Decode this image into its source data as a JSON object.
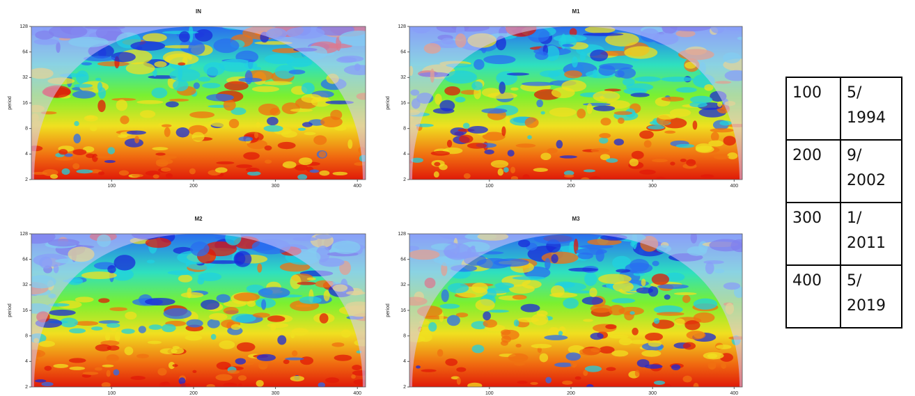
{
  "chart_data": [
    {
      "type": "heatmap",
      "title": "IN",
      "ylabel": "period",
      "xlim": [
        2,
        410
      ],
      "xticks": [
        100,
        200,
        300,
        400
      ],
      "ylim": [
        2,
        128
      ],
      "yticks": [
        2,
        4,
        8,
        16,
        32,
        64,
        128
      ],
      "log_scale": true
    },
    {
      "type": "heatmap",
      "title": "M1",
      "ylabel": "period",
      "xlim": [
        2,
        410
      ],
      "xticks": [
        100,
        200,
        300,
        400
      ],
      "ylim": [
        2,
        128
      ],
      "yticks": [
        2,
        4,
        8,
        16,
        32,
        64,
        128
      ],
      "log_scale": true
    },
    {
      "type": "heatmap",
      "title": "M2",
      "ylabel": "period",
      "xlim": [
        2,
        410
      ],
      "xticks": [
        100,
        200,
        300,
        400
      ],
      "ylim": [
        2,
        128
      ],
      "yticks": [
        2,
        4,
        8,
        16,
        32,
        64,
        128
      ],
      "log_scale": true
    },
    {
      "type": "heatmap",
      "title": "M3",
      "ylabel": "period",
      "xlim": [
        2,
        410
      ],
      "xticks": [
        100,
        200,
        300,
        400
      ],
      "ylim": [
        2,
        128
      ],
      "yticks": [
        2,
        4,
        8,
        16,
        32,
        64,
        128
      ],
      "log_scale": true
    }
  ],
  "table": {
    "rows": [
      [
        "100",
        "5/ 1994"
      ],
      [
        "200",
        "9/ 2002"
      ],
      [
        "300",
        "1/ 2011"
      ],
      [
        "400",
        "5/ 2019"
      ]
    ]
  }
}
